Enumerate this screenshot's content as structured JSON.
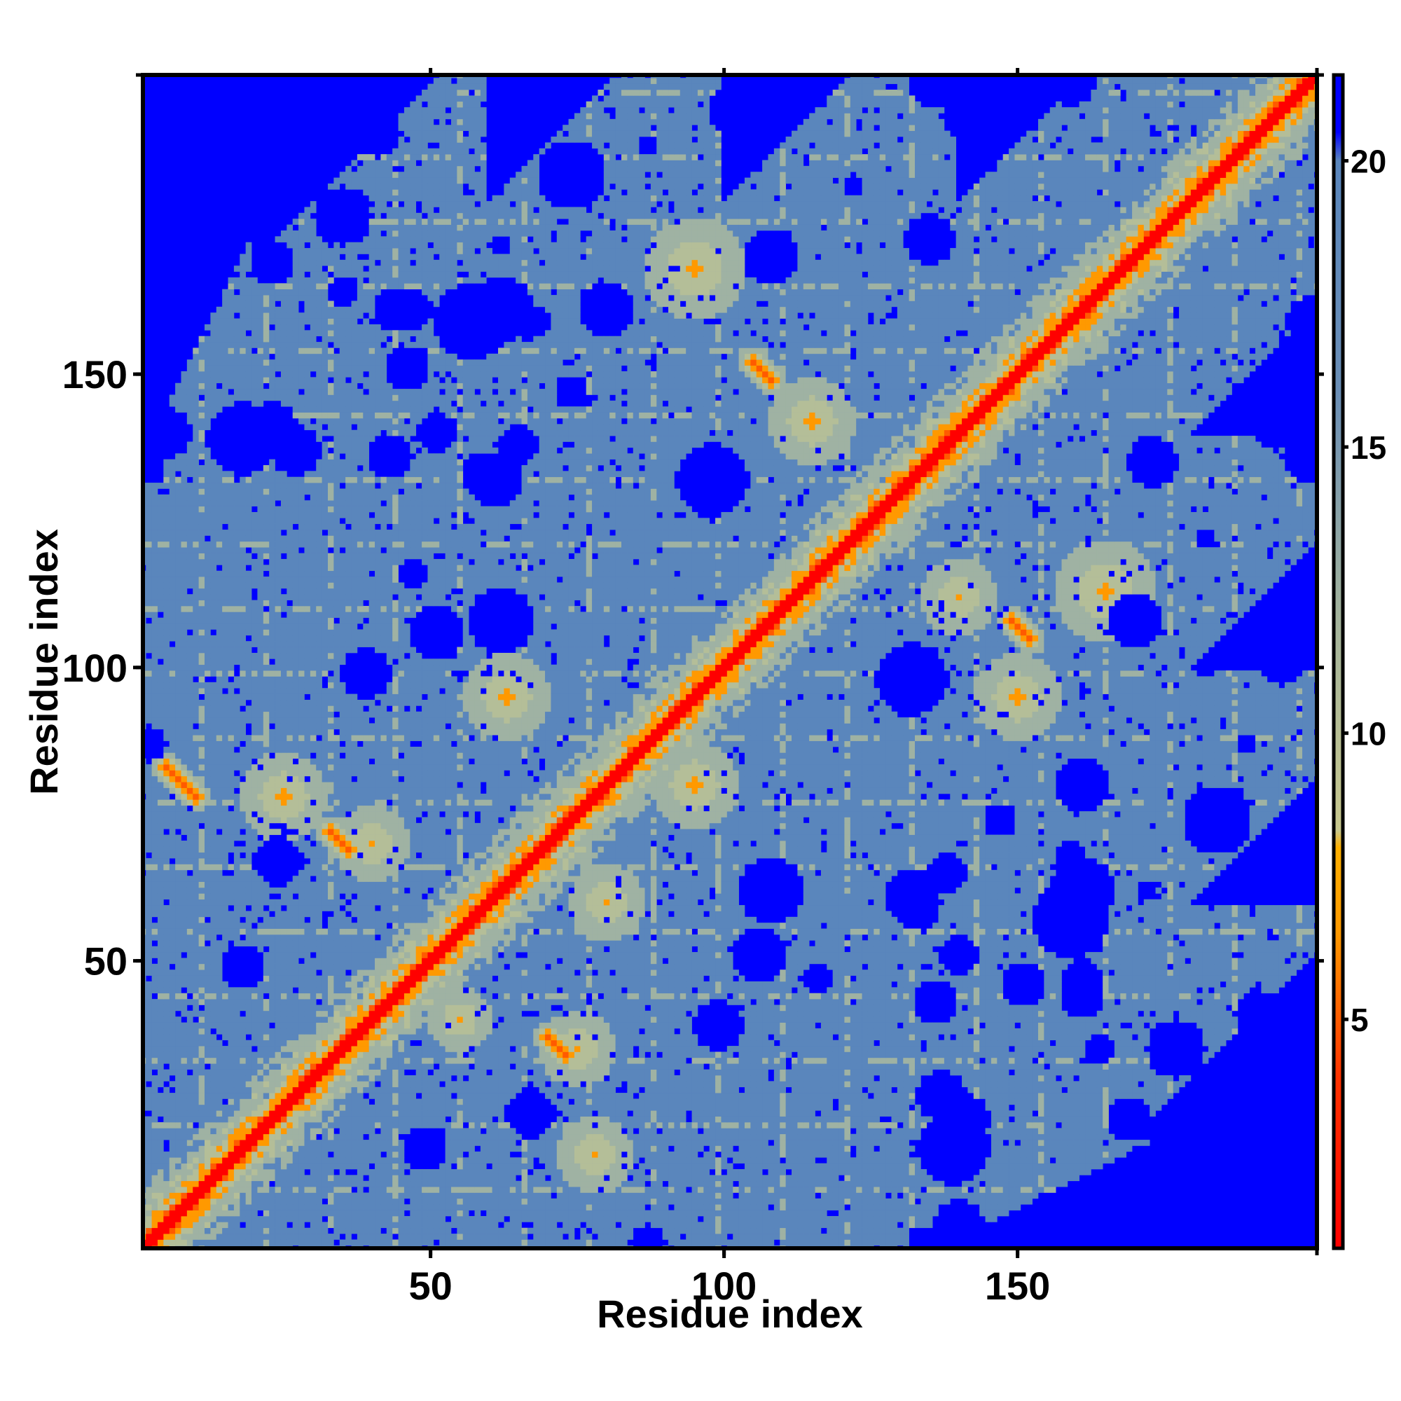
{
  "chart_data": {
    "type": "heatmap",
    "title": "",
    "xlabel": "Residue index",
    "ylabel": "Residue index",
    "xlim": [
      1,
      201
    ],
    "ylim": [
      1,
      201
    ],
    "x_ticks": [
      50,
      100,
      150
    ],
    "y_ticks": [
      50,
      100,
      150
    ],
    "value_range": [
      1,
      21.5
    ],
    "colorbar": {
      "ticks": [
        5,
        10,
        15,
        20
      ],
      "gradient": [
        {
          "value": 1,
          "color": "#ff0000"
        },
        {
          "value": 4,
          "color": "#ff3300"
        },
        {
          "value": 6.5,
          "color": "#ff9900"
        },
        {
          "value": 8,
          "color": "#ffb000"
        },
        {
          "value": 8.3,
          "color": "#c8c88e"
        },
        {
          "value": 12,
          "color": "#a4b49c"
        },
        {
          "value": 16,
          "color": "#6a8eb6"
        },
        {
          "value": 20,
          "color": "#5a86bc"
        },
        {
          "value": 20.5,
          "color": "#0000ff"
        },
        {
          "value": 21.5,
          "color": "#0000ff"
        }
      ]
    },
    "colors": {
      "background": "#0000ff",
      "mid": "#5a86bc",
      "near": "#b4be98",
      "contact": "#ff9900",
      "diagonal": "#ff0000"
    },
    "matrix_description": "Symmetric residue-residue distance map (Angstrom), 201 x 201 residues, values clipped at 21.5",
    "contact_features": [
      {
        "type": "diagonal",
        "from": 1,
        "to": 201
      },
      {
        "type": "strand_pair",
        "start": [
          10,
          78
        ],
        "end": [
          5,
          83
        ]
      },
      {
        "type": "strand_pair",
        "start": [
          33,
          72
        ],
        "end": [
          36,
          69
        ]
      },
      {
        "type": "strand_pair",
        "start": [
          70,
          37
        ],
        "end": [
          73,
          34
        ]
      },
      {
        "type": "strand_pair",
        "start": [
          105,
          152
        ],
        "end": [
          108,
          149
        ]
      },
      {
        "type": "strand_pair",
        "start": [
          149,
          108
        ],
        "end": [
          152,
          105
        ]
      },
      {
        "type": "cluster",
        "center": [
          95,
          168
        ],
        "size": 8
      },
      {
        "type": "cluster",
        "center": [
          115,
          142
        ],
        "size": 7
      },
      {
        "type": "cluster",
        "center": [
          165,
          113
        ],
        "size": 8
      },
      {
        "type": "cluster",
        "center": [
          150,
          95
        ],
        "size": 7
      },
      {
        "type": "cluster",
        "center": [
          140,
          112
        ],
        "size": 6
      },
      {
        "type": "cluster",
        "center": [
          25,
          78
        ],
        "size": 7
      },
      {
        "type": "cluster",
        "center": [
          40,
          70
        ],
        "size": 6
      },
      {
        "type": "cluster",
        "center": [
          63,
          95
        ],
        "size": 7
      },
      {
        "type": "cluster",
        "center": [
          75,
          35
        ],
        "size": 6
      },
      {
        "type": "cluster",
        "center": [
          80,
          60
        ],
        "size": 6
      },
      {
        "type": "cluster",
        "center": [
          95,
          80
        ],
        "size": 7
      },
      {
        "type": "cluster",
        "center": [
          55,
          40
        ],
        "size": 5
      },
      {
        "type": "cluster",
        "center": [
          78,
          17
        ],
        "size": 6
      }
    ]
  }
}
